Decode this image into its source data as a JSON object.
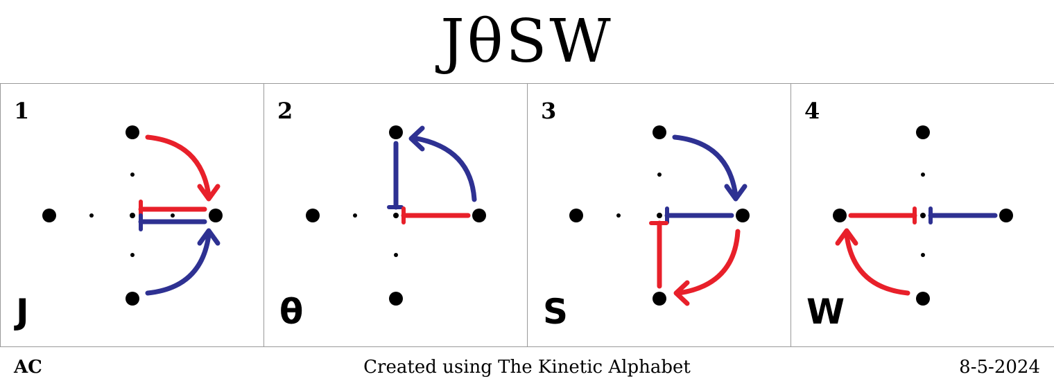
{
  "title": "JθSW",
  "footer": {
    "author": "AC",
    "credit": "Created using The Kinetic Alphabet",
    "date": "8-5-2024"
  },
  "colors": {
    "red": "#e8202a",
    "blue": "#2e3192",
    "dot": "#000000"
  },
  "panels": [
    {
      "number": "1",
      "letter": "J"
    },
    {
      "number": "2",
      "letter": "θ"
    },
    {
      "number": "3",
      "letter": "S"
    },
    {
      "number": "4",
      "letter": "W"
    }
  ]
}
